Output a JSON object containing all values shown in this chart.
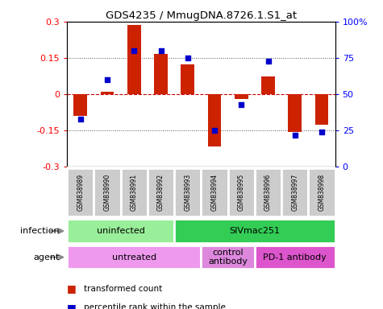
{
  "title": "GDS4235 / MmugDNA.8726.1.S1_at",
  "samples": [
    "GSM838989",
    "GSM838990",
    "GSM838991",
    "GSM838992",
    "GSM838993",
    "GSM838994",
    "GSM838995",
    "GSM838996",
    "GSM838997",
    "GSM838998"
  ],
  "transformed_counts": [
    -0.09,
    0.01,
    0.285,
    0.165,
    0.125,
    -0.215,
    -0.02,
    0.075,
    -0.155,
    -0.125
  ],
  "percentile_ranks": [
    33,
    60,
    80,
    80,
    75,
    25,
    43,
    73,
    22,
    24
  ],
  "ylim_left": [
    -0.3,
    0.3
  ],
  "ylim_right": [
    0,
    100
  ],
  "yticks_left": [
    -0.3,
    -0.15,
    0.0,
    0.15,
    0.3
  ],
  "yticks_right": [
    0,
    25,
    50,
    75,
    100
  ],
  "bar_color": "#cc2200",
  "dot_color": "#0000cc",
  "infection_groups": [
    {
      "label": "uninfected",
      "start": 0,
      "end": 4,
      "color": "#99ee99"
    },
    {
      "label": "SIVmac251",
      "start": 4,
      "end": 10,
      "color": "#33cc55"
    }
  ],
  "agent_groups": [
    {
      "label": "untreated",
      "start": 0,
      "end": 5,
      "color": "#ee99ee"
    },
    {
      "label": "control\nantibody",
      "start": 5,
      "end": 7,
      "color": "#dd88dd"
    },
    {
      "label": "PD-1 antibody",
      "start": 7,
      "end": 10,
      "color": "#dd55cc"
    }
  ],
  "legend_items": [
    {
      "label": "transformed count",
      "color": "#cc2200"
    },
    {
      "label": "percentile rank within the sample",
      "color": "#0000cc"
    }
  ],
  "hline_color": "#cc0000",
  "dotted_color": "#555555",
  "sample_box_color": "#cccccc",
  "infection_label": "infection",
  "agent_label": "agent",
  "arrow_color": "#888888"
}
